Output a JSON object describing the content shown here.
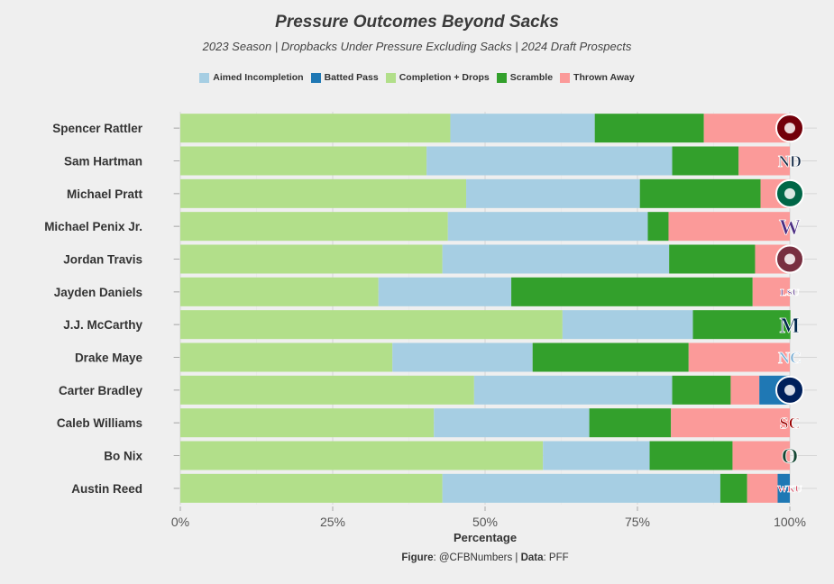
{
  "chart_data": {
    "type": "bar",
    "orientation": "horizontal",
    "stacked": true,
    "title": "Pressure Outcomes Beyond Sacks",
    "subtitle": "2023 Season | Dropbacks Under Pressure Excluding Sacks | 2024 Draft Prospects",
    "xlabel": "Percentage",
    "ylabel": "",
    "xlim": [
      0,
      100
    ],
    "xticks": [
      "0%",
      "25%",
      "50%",
      "75%",
      "100%"
    ],
    "xtick_values": [
      0,
      25,
      50,
      75,
      100
    ],
    "grid": true,
    "legend_position": "top",
    "categories": [
      "Spencer Rattler",
      "Sam Hartman",
      "Michael Pratt",
      "Michael Penix Jr.",
      "Jordan Travis",
      "Jayden Daniels",
      "J.J. McCarthy",
      "Drake Maye",
      "Carter Bradley",
      "Caleb Williams",
      "Bo Nix",
      "Austin Reed"
    ],
    "series": [
      {
        "name": "Completion + Drops",
        "color": "#b2df8a",
        "values": [
          44.3,
          40.4,
          46.9,
          43.9,
          43.0,
          32.5,
          62.7,
          34.8,
          48.2,
          41.6,
          59.5,
          43.0
        ]
      },
      {
        "name": "Aimed Incompletion",
        "color": "#a6cee3",
        "values": [
          23.7,
          40.3,
          28.5,
          32.8,
          37.2,
          21.8,
          21.4,
          23.0,
          32.5,
          25.5,
          17.5,
          45.6
        ]
      },
      {
        "name": "Scramble",
        "color": "#33a02c",
        "values": [
          17.9,
          10.9,
          19.8,
          3.4,
          14.1,
          39.6,
          16.0,
          25.6,
          9.6,
          13.4,
          13.6,
          4.4
        ]
      },
      {
        "name": "Thrown Away",
        "color": "#fb9a99",
        "values": [
          14.1,
          8.4,
          4.8,
          19.9,
          5.7,
          6.1,
          0.0,
          16.6,
          4.7,
          19.5,
          9.4,
          5.0
        ]
      },
      {
        "name": "Batted Pass",
        "color": "#1f78b4",
        "values": [
          0.0,
          0.0,
          0.0,
          0.0,
          0.0,
          0.0,
          0.0,
          0.0,
          5.0,
          0.0,
          0.0,
          2.0
        ]
      }
    ],
    "legend_order": [
      "Aimed Incompletion",
      "Batted Pass",
      "Completion + Drops",
      "Scramble",
      "Thrown Away"
    ],
    "team_logos": [
      "South Carolina",
      "Notre Dame",
      "Tulane",
      "Washington",
      "Florida State",
      "LSU",
      "Michigan",
      "North Carolina",
      "South Alabama",
      "USC",
      "Oregon",
      "Western Kentucky"
    ]
  },
  "logo_text": [
    "",
    "ND",
    "",
    "W",
    "",
    "LSU",
    "M",
    "NC",
    "",
    "SC",
    "O",
    "WKU"
  ],
  "logo_colors": [
    "#73000a",
    "#0c2340",
    "#006747",
    "#4b2e83",
    "#782f40",
    "#461d7c",
    "#00274c",
    "#7bafd4",
    "#00205b",
    "#990000",
    "#154733",
    "#c8102e"
  ],
  "caption": {
    "figure_label": "Figure",
    "figure_text": ": @CFBNumbers | ",
    "data_label": "Data",
    "data_text": ": PFF"
  }
}
